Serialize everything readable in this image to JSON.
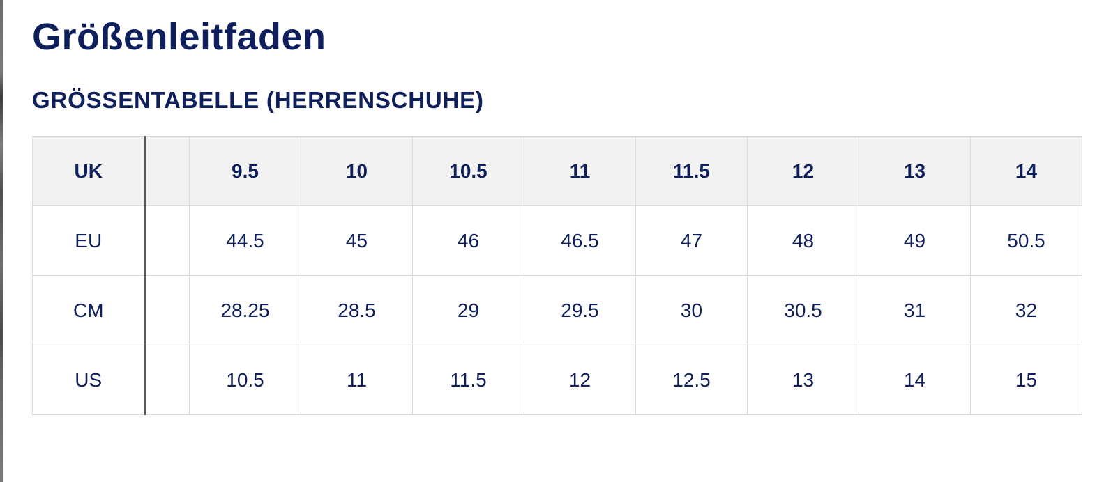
{
  "page": {
    "title": "Größenleitfaden",
    "subtitle": "GRÖSSENTABELLE (HERRENSCHUHE)"
  },
  "size_table": {
    "header": {
      "label": "UK",
      "values": [
        "9.5",
        "10",
        "10.5",
        "11",
        "11.5",
        "12",
        "13",
        "14"
      ]
    },
    "rows": [
      {
        "label": "EU",
        "values": [
          "44.5",
          "45",
          "46",
          "46.5",
          "47",
          "48",
          "49",
          "50.5"
        ]
      },
      {
        "label": "CM",
        "values": [
          "28.25",
          "28.5",
          "29",
          "29.5",
          "30",
          "30.5",
          "31",
          "32"
        ]
      },
      {
        "label": "US",
        "values": [
          "10.5",
          "11",
          "11.5",
          "12",
          "12.5",
          "13",
          "14",
          "15"
        ]
      }
    ]
  },
  "colors": {
    "text": "#0e1f5b",
    "header_bg": "#f2f2f2",
    "border": "#dcdcdc",
    "label_divider": "#5a5a5a"
  }
}
